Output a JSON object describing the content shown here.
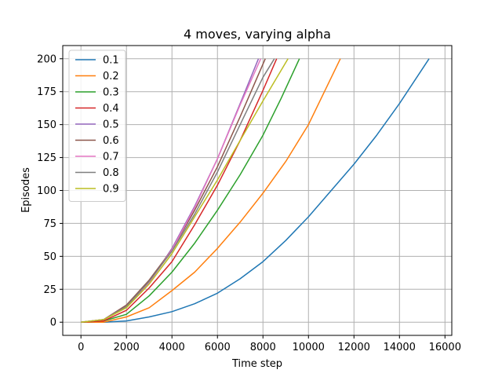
{
  "chart_data": {
    "type": "line",
    "title": "4 moves, varying alpha",
    "xlabel": "Time step",
    "ylabel": "Episodes",
    "xlim": [
      -800,
      16300
    ],
    "ylim": [
      -10,
      210
    ],
    "xticks": [
      0,
      2000,
      4000,
      6000,
      8000,
      10000,
      12000,
      14000,
      16000
    ],
    "yticks": [
      0,
      25,
      50,
      75,
      100,
      125,
      150,
      175,
      200
    ],
    "grid": true,
    "legend_position": "top-left",
    "series": [
      {
        "name": "0.1",
        "color": "#1f77b4",
        "x": [
          0,
          1000,
          2000,
          3000,
          4000,
          5000,
          6000,
          7000,
          8000,
          9000,
          10000,
          11000,
          12000,
          13000,
          14000,
          15300
        ],
        "y": [
          0,
          0,
          1,
          4,
          8,
          14,
          22,
          33,
          46,
          62,
          80,
          100,
          120,
          142,
          166,
          200
        ]
      },
      {
        "name": "0.2",
        "color": "#ff7f0e",
        "x": [
          0,
          1000,
          2000,
          3000,
          4000,
          5000,
          6000,
          7000,
          8000,
          9000,
          10000,
          11400
        ],
        "y": [
          0,
          0,
          4,
          11,
          24,
          38,
          56,
          76,
          98,
          122,
          150,
          200
        ]
      },
      {
        "name": "0.3",
        "color": "#2ca02c",
        "x": [
          0,
          1000,
          2000,
          3000,
          4000,
          5000,
          6000,
          7000,
          8000,
          8800,
          9600
        ],
        "y": [
          0,
          1,
          6,
          20,
          38,
          60,
          85,
          112,
          142,
          170,
          200
        ]
      },
      {
        "name": "0.4",
        "color": "#d62728",
        "x": [
          0,
          1000,
          2000,
          3000,
          4000,
          5000,
          6000,
          7000,
          8000,
          8600
        ],
        "y": [
          0,
          1,
          9,
          26,
          46,
          74,
          104,
          138,
          176,
          200
        ]
      },
      {
        "name": "0.5",
        "color": "#9467bd",
        "x": [
          0,
          1000,
          2000,
          3000,
          4000,
          5000,
          6000,
          7000,
          7800
        ],
        "y": [
          0,
          2,
          12,
          30,
          56,
          88,
          124,
          166,
          200
        ]
      },
      {
        "name": "0.6",
        "color": "#8c564b",
        "x": [
          0,
          1000,
          2000,
          3000,
          4000,
          5000,
          6000,
          7000,
          8100
        ],
        "y": [
          0,
          2,
          13,
          32,
          55,
          85,
          118,
          156,
          200
        ]
      },
      {
        "name": "0.7",
        "color": "#e377c2",
        "x": [
          0,
          1000,
          2000,
          3000,
          4000,
          5000,
          6000,
          7000,
          7900
        ],
        "y": [
          0,
          2,
          12,
          30,
          55,
          87,
          124,
          165,
          200
        ]
      },
      {
        "name": "0.8",
        "color": "#7f7f7f",
        "x": [
          0,
          1000,
          2000,
          3000,
          4000,
          5000,
          6000,
          7000,
          8000,
          8500
        ],
        "y": [
          0,
          2,
          12,
          31,
          54,
          82,
          114,
          150,
          186,
          200
        ]
      },
      {
        "name": "0.9",
        "color": "#bcbd22",
        "x": [
          0,
          1000,
          2000,
          3000,
          4000,
          5000,
          6000,
          7000,
          8000,
          9100
        ],
        "y": [
          0,
          2,
          11,
          29,
          52,
          80,
          108,
          138,
          168,
          200
        ]
      }
    ]
  }
}
